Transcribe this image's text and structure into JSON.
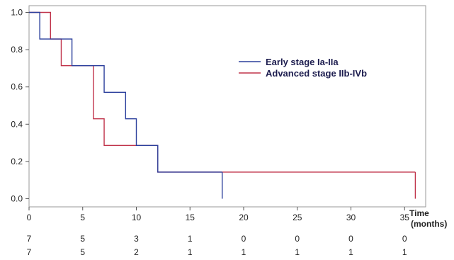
{
  "chart_data": {
    "type": "line",
    "subtype": "kaplan-meier-step",
    "xlabel": [
      "Time",
      "(months)"
    ],
    "xlim": [
      0,
      37
    ],
    "ylim": [
      -0.04,
      1.0
    ],
    "x_ticks": [
      0,
      5,
      10,
      15,
      20,
      25,
      30,
      35
    ],
    "y_ticks": [
      0.0,
      0.2,
      0.4,
      0.6,
      0.8,
      1.0
    ],
    "y_tick_labels": [
      "0.0",
      "0.2",
      "0.4",
      "0.6",
      "0.8",
      "1.0"
    ],
    "grid": false,
    "legend_position": "right, upper-middle",
    "series": [
      {
        "name": "Early stage Ia-IIa",
        "color": "#2b3f9c",
        "steps": [
          {
            "x": 0,
            "y": 1.0
          },
          {
            "x": 1,
            "y": 0.857
          },
          {
            "x": 4,
            "y": 0.714
          },
          {
            "x": 7,
            "y": 0.571
          },
          {
            "x": 9,
            "y": 0.429
          },
          {
            "x": 10,
            "y": 0.286
          },
          {
            "x": 12,
            "y": 0.143
          },
          {
            "x": 18,
            "y": 0.143
          }
        ],
        "censor_drop": {
          "x": 18,
          "from": 0.143,
          "to": 0.0
        },
        "at_risk": [
          "7",
          "5",
          "3",
          "1",
          "0",
          "0",
          "0",
          "0"
        ]
      },
      {
        "name": "Advanced stage IIb-IVb",
        "color": "#c0334a",
        "steps": [
          {
            "x": 0,
            "y": 1.0
          },
          {
            "x": 2,
            "y": 0.857
          },
          {
            "x": 3,
            "y": 0.714
          },
          {
            "x": 6,
            "y": 0.429
          },
          {
            "x": 7,
            "y": 0.286
          },
          {
            "x": 12,
            "y": 0.143
          },
          {
            "x": 36,
            "y": 0.143
          }
        ],
        "censor_drop": {
          "x": 36,
          "from": 0.143,
          "to": 0.0
        },
        "at_risk": [
          "7",
          "5",
          "2",
          "1",
          "1",
          "1",
          "1",
          "1"
        ]
      }
    ]
  }
}
